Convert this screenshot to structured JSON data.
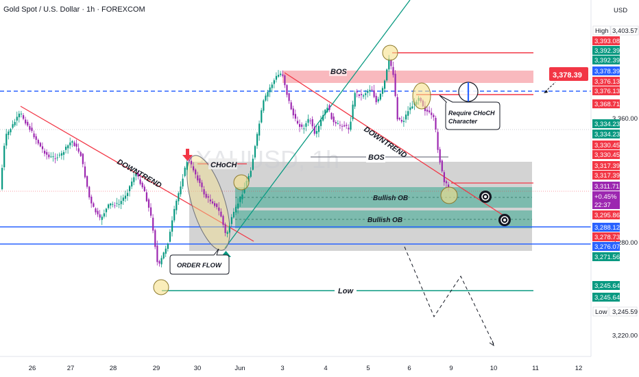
{
  "header": {
    "title": "Gold Spot / U.S. Dollar · 1h · FOREXCOM",
    "currency": "USD",
    "watermark": "XAUUSD, 1h"
  },
  "chart_data": {
    "type": "candlestick",
    "x_ticks": [
      "26",
      "27",
      "28",
      "29",
      "30",
      "Jun",
      "3",
      "4",
      "5",
      "6",
      "9",
      "10",
      "11",
      "12"
    ],
    "y_ticks": [
      3360.0,
      3280.0,
      3220.0
    ],
    "ylim": [
      3202,
      3418
    ],
    "high_label": {
      "text": "High",
      "value": "3,403.57"
    },
    "low_label": {
      "text": "Low",
      "value": "3,245.59"
    },
    "current_price": "3,378.39",
    "live_change": "+0.45%",
    "countdown": "22:37",
    "price_tags": [
      {
        "value": "3,393.08",
        "color": "#f23645"
      },
      {
        "value": "3,392.39",
        "color": "#089981"
      },
      {
        "value": "3,392.39",
        "color": "#089981"
      },
      {
        "value": "3,378.39",
        "color": "#2962ff"
      },
      {
        "value": "3,376.13",
        "color": "#f23645"
      },
      {
        "value": "3,376.13",
        "color": "#f23645"
      },
      {
        "value": "3,368.71",
        "color": "#f23645"
      },
      {
        "value": "3,334.23",
        "color": "#089981"
      },
      {
        "value": "3,334.23",
        "color": "#089981"
      },
      {
        "value": "3,330.45",
        "color": "#f23645"
      },
      {
        "value": "3,330.45",
        "color": "#f23645"
      },
      {
        "value": "3,317.39",
        "color": "#f23645"
      },
      {
        "value": "3,317.39",
        "color": "#f23645"
      },
      {
        "value": "3,311.71",
        "color": "#9c27b0"
      },
      {
        "value": "3,295.86",
        "color": "#f23645"
      },
      {
        "value": "3,288.12",
        "color": "#2962ff"
      },
      {
        "value": "3,278.73",
        "color": "#f23645"
      },
      {
        "value": "3,276.07",
        "color": "#2962ff"
      },
      {
        "value": "3,271.56",
        "color": "#089981"
      },
      {
        "value": "3,245.64",
        "color": "#089981"
      },
      {
        "value": "3,245.64",
        "color": "#089981"
      }
    ],
    "annotations": {
      "downtrend": "DOWNTREND",
      "choch": "CHoCH",
      "bos": "BOS",
      "bullish_ob": "Bullish OB",
      "order_flow": "ORDER FLOW",
      "low": "Low",
      "require_line1": "Require CHoCH",
      "require_line2": "Character"
    },
    "colors": {
      "up": "#089981",
      "down": "#9c27b0",
      "trend_red": "#f23645",
      "trend_green": "#089981",
      "level_blue": "#2962ff"
    }
  }
}
